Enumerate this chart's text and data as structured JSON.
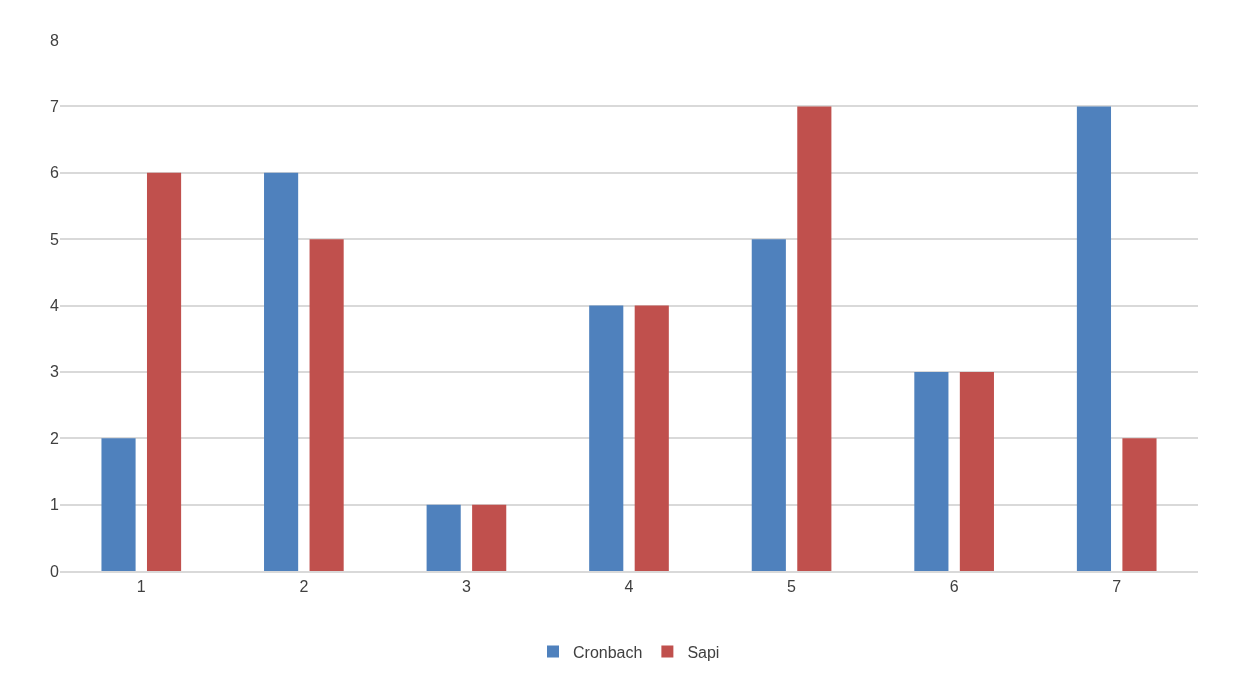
{
  "chart_data": {
    "type": "bar",
    "categories": [
      "1",
      "2",
      "3",
      "4",
      "5",
      "6",
      "7"
    ],
    "series": [
      {
        "name": "Cronbach",
        "color": "#4f81bd",
        "values": [
          2,
          6,
          1,
          4,
          5,
          3,
          7
        ]
      },
      {
        "name": "Sapi",
        "color": "#c0504d",
        "values": [
          6,
          5,
          1,
          4,
          7,
          3,
          2
        ]
      }
    ],
    "ylim": [
      0,
      8
    ],
    "yticks": [
      0,
      1,
      2,
      3,
      4,
      5,
      6,
      7,
      8
    ],
    "grid": "y",
    "legend": "bottom"
  }
}
